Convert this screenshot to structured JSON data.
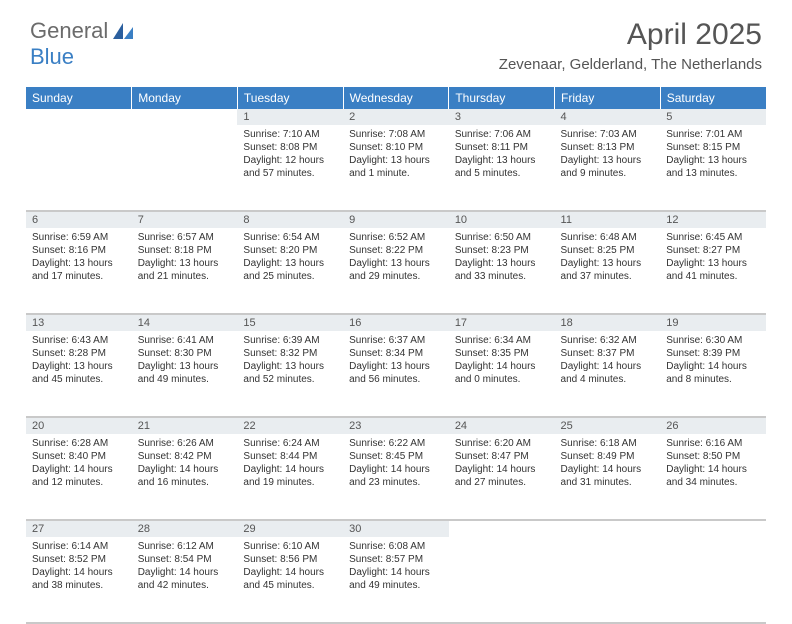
{
  "brand": {
    "part1": "General",
    "part2": "Blue"
  },
  "title": "April 2025",
  "location": "Zevenaar, Gelderland, The Netherlands",
  "header_bg": "#3a7fc4",
  "daynum_bg": "#e9edf0",
  "days": [
    "Sunday",
    "Monday",
    "Tuesday",
    "Wednesday",
    "Thursday",
    "Friday",
    "Saturday"
  ],
  "weeks": [
    [
      null,
      null,
      {
        "n": "1",
        "sr": "Sunrise: 7:10 AM",
        "ss": "Sunset: 8:08 PM",
        "dl": "Daylight: 12 hours and 57 minutes."
      },
      {
        "n": "2",
        "sr": "Sunrise: 7:08 AM",
        "ss": "Sunset: 8:10 PM",
        "dl": "Daylight: 13 hours and 1 minute."
      },
      {
        "n": "3",
        "sr": "Sunrise: 7:06 AM",
        "ss": "Sunset: 8:11 PM",
        "dl": "Daylight: 13 hours and 5 minutes."
      },
      {
        "n": "4",
        "sr": "Sunrise: 7:03 AM",
        "ss": "Sunset: 8:13 PM",
        "dl": "Daylight: 13 hours and 9 minutes."
      },
      {
        "n": "5",
        "sr": "Sunrise: 7:01 AM",
        "ss": "Sunset: 8:15 PM",
        "dl": "Daylight: 13 hours and 13 minutes."
      }
    ],
    [
      {
        "n": "6",
        "sr": "Sunrise: 6:59 AM",
        "ss": "Sunset: 8:16 PM",
        "dl": "Daylight: 13 hours and 17 minutes."
      },
      {
        "n": "7",
        "sr": "Sunrise: 6:57 AM",
        "ss": "Sunset: 8:18 PM",
        "dl": "Daylight: 13 hours and 21 minutes."
      },
      {
        "n": "8",
        "sr": "Sunrise: 6:54 AM",
        "ss": "Sunset: 8:20 PM",
        "dl": "Daylight: 13 hours and 25 minutes."
      },
      {
        "n": "9",
        "sr": "Sunrise: 6:52 AM",
        "ss": "Sunset: 8:22 PM",
        "dl": "Daylight: 13 hours and 29 minutes."
      },
      {
        "n": "10",
        "sr": "Sunrise: 6:50 AM",
        "ss": "Sunset: 8:23 PM",
        "dl": "Daylight: 13 hours and 33 minutes."
      },
      {
        "n": "11",
        "sr": "Sunrise: 6:48 AM",
        "ss": "Sunset: 8:25 PM",
        "dl": "Daylight: 13 hours and 37 minutes."
      },
      {
        "n": "12",
        "sr": "Sunrise: 6:45 AM",
        "ss": "Sunset: 8:27 PM",
        "dl": "Daylight: 13 hours and 41 minutes."
      }
    ],
    [
      {
        "n": "13",
        "sr": "Sunrise: 6:43 AM",
        "ss": "Sunset: 8:28 PM",
        "dl": "Daylight: 13 hours and 45 minutes."
      },
      {
        "n": "14",
        "sr": "Sunrise: 6:41 AM",
        "ss": "Sunset: 8:30 PM",
        "dl": "Daylight: 13 hours and 49 minutes."
      },
      {
        "n": "15",
        "sr": "Sunrise: 6:39 AM",
        "ss": "Sunset: 8:32 PM",
        "dl": "Daylight: 13 hours and 52 minutes."
      },
      {
        "n": "16",
        "sr": "Sunrise: 6:37 AM",
        "ss": "Sunset: 8:34 PM",
        "dl": "Daylight: 13 hours and 56 minutes."
      },
      {
        "n": "17",
        "sr": "Sunrise: 6:34 AM",
        "ss": "Sunset: 8:35 PM",
        "dl": "Daylight: 14 hours and 0 minutes."
      },
      {
        "n": "18",
        "sr": "Sunrise: 6:32 AM",
        "ss": "Sunset: 8:37 PM",
        "dl": "Daylight: 14 hours and 4 minutes."
      },
      {
        "n": "19",
        "sr": "Sunrise: 6:30 AM",
        "ss": "Sunset: 8:39 PM",
        "dl": "Daylight: 14 hours and 8 minutes."
      }
    ],
    [
      {
        "n": "20",
        "sr": "Sunrise: 6:28 AM",
        "ss": "Sunset: 8:40 PM",
        "dl": "Daylight: 14 hours and 12 minutes."
      },
      {
        "n": "21",
        "sr": "Sunrise: 6:26 AM",
        "ss": "Sunset: 8:42 PM",
        "dl": "Daylight: 14 hours and 16 minutes."
      },
      {
        "n": "22",
        "sr": "Sunrise: 6:24 AM",
        "ss": "Sunset: 8:44 PM",
        "dl": "Daylight: 14 hours and 19 minutes."
      },
      {
        "n": "23",
        "sr": "Sunrise: 6:22 AM",
        "ss": "Sunset: 8:45 PM",
        "dl": "Daylight: 14 hours and 23 minutes."
      },
      {
        "n": "24",
        "sr": "Sunrise: 6:20 AM",
        "ss": "Sunset: 8:47 PM",
        "dl": "Daylight: 14 hours and 27 minutes."
      },
      {
        "n": "25",
        "sr": "Sunrise: 6:18 AM",
        "ss": "Sunset: 8:49 PM",
        "dl": "Daylight: 14 hours and 31 minutes."
      },
      {
        "n": "26",
        "sr": "Sunrise: 6:16 AM",
        "ss": "Sunset: 8:50 PM",
        "dl": "Daylight: 14 hours and 34 minutes."
      }
    ],
    [
      {
        "n": "27",
        "sr": "Sunrise: 6:14 AM",
        "ss": "Sunset: 8:52 PM",
        "dl": "Daylight: 14 hours and 38 minutes."
      },
      {
        "n": "28",
        "sr": "Sunrise: 6:12 AM",
        "ss": "Sunset: 8:54 PM",
        "dl": "Daylight: 14 hours and 42 minutes."
      },
      {
        "n": "29",
        "sr": "Sunrise: 6:10 AM",
        "ss": "Sunset: 8:56 PM",
        "dl": "Daylight: 14 hours and 45 minutes."
      },
      {
        "n": "30",
        "sr": "Sunrise: 6:08 AM",
        "ss": "Sunset: 8:57 PM",
        "dl": "Daylight: 14 hours and 49 minutes."
      },
      null,
      null,
      null
    ]
  ]
}
